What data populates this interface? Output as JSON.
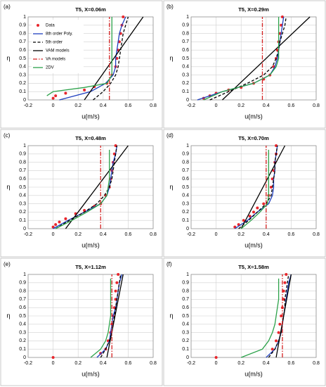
{
  "chart_data": [
    {
      "type": "line",
      "label": "(a)",
      "title": "T5, X=0.06m",
      "x_label": "u(m/s)",
      "y_label": "η",
      "xlim": [
        -0.2,
        0.8
      ],
      "ylim": [
        0,
        1
      ],
      "xticks": [
        -0.2,
        0,
        0.2,
        0.4,
        0.6,
        0.8
      ],
      "yticks": [
        0,
        0.1,
        0.2,
        0.3,
        0.4,
        0.5,
        0.6,
        0.7,
        0.8,
        0.9,
        1
      ],
      "grid": true,
      "legend": "upper left",
      "series": [
        {
          "name": "Data",
          "color": "#e8262c",
          "style": "marker",
          "x": [
            0.0,
            0.02,
            0.1,
            0.25,
            0.33,
            0.43,
            0.47,
            0.5,
            0.51,
            0.52,
            0.53,
            0.54,
            0.55,
            0.56
          ],
          "y": [
            0.02,
            0.05,
            0.08,
            0.12,
            0.16,
            0.2,
            0.3,
            0.4,
            0.5,
            0.6,
            0.7,
            0.8,
            0.9,
            1
          ]
        },
        {
          "name": "8th order Poly.",
          "color": "#1f3fbf",
          "style": "solid",
          "x": [
            0.05,
            0.3,
            0.42,
            0.48,
            0.5,
            0.5,
            0.51,
            0.52,
            0.53,
            0.55,
            0.58
          ],
          "y": [
            0,
            0.1,
            0.2,
            0.3,
            0.4,
            0.5,
            0.6,
            0.7,
            0.8,
            0.9,
            1
          ]
        },
        {
          "name": "5th order",
          "color": "#000000",
          "style": "dashed",
          "x": [
            0.32,
            0.4,
            0.46,
            0.5,
            0.52,
            0.53,
            0.54,
            0.55,
            0.56,
            0.58,
            0.6
          ],
          "y": [
            0,
            0.1,
            0.2,
            0.3,
            0.4,
            0.5,
            0.6,
            0.7,
            0.8,
            0.9,
            1
          ]
        },
        {
          "name": "VAM models",
          "color": "#000000",
          "style": "solid",
          "x": [
            0.25,
            0.72
          ],
          "y": [
            0,
            1
          ]
        },
        {
          "name": "VA models",
          "color": "#d42020",
          "style": "dashdot",
          "x": [
            0.45,
            0.45
          ],
          "y": [
            0,
            1
          ]
        },
        {
          "name": "2DV",
          "color": "#2ca24a",
          "style": "solid",
          "x": [
            -0.05,
            0.0,
            0.25,
            0.43,
            0.47,
            0.47,
            0.47
          ],
          "y": [
            0.05,
            0.1,
            0.15,
            0.2,
            0.3,
            0.6,
            1
          ]
        }
      ]
    },
    {
      "type": "line",
      "label": "(b)",
      "title": "T5, X=0.29m",
      "x_label": "u(m/s)",
      "y_label": "η",
      "xlim": [
        -0.2,
        0.8
      ],
      "ylim": [
        0,
        1
      ],
      "xticks": [
        -0.2,
        0,
        0.2,
        0.4,
        0.6,
        0.8
      ],
      "yticks": [
        0,
        0.1,
        0.2,
        0.3,
        0.4,
        0.5,
        0.6,
        0.7,
        0.8,
        0.9,
        1
      ],
      "grid": true,
      "series": [
        {
          "color": "#e8262c",
          "style": "marker",
          "x": [
            -0.1,
            -0.05,
            0,
            0.1,
            0.2,
            0.3,
            0.38,
            0.43,
            0.46,
            0.48,
            0.49,
            0.5,
            0.51,
            0.52,
            0.53
          ],
          "y": [
            0.02,
            0.05,
            0.08,
            0.12,
            0.15,
            0.2,
            0.25,
            0.3,
            0.4,
            0.5,
            0.6,
            0.7,
            0.8,
            0.9,
            1
          ]
        },
        {
          "color": "#1f3fbf",
          "style": "solid",
          "x": [
            -0.15,
            0.05,
            0.3,
            0.43,
            0.47,
            0.49,
            0.5,
            0.51,
            0.52,
            0.53,
            0.54
          ],
          "y": [
            0,
            0.1,
            0.2,
            0.3,
            0.4,
            0.5,
            0.6,
            0.7,
            0.8,
            0.9,
            1
          ]
        },
        {
          "color": "#000000",
          "style": "dashed",
          "x": [
            -0.05,
            0.1,
            0.25,
            0.38,
            0.45,
            0.48,
            0.5,
            0.51,
            0.53,
            0.55,
            0.56
          ],
          "y": [
            0,
            0.1,
            0.2,
            0.3,
            0.4,
            0.5,
            0.6,
            0.7,
            0.8,
            0.9,
            1
          ]
        },
        {
          "color": "#000000",
          "style": "solid",
          "x": [
            0.05,
            0.75
          ],
          "y": [
            0,
            1
          ]
        },
        {
          "color": "#d42020",
          "style": "dashdot",
          "x": [
            0.37,
            0.37
          ],
          "y": [
            0,
            1
          ]
        },
        {
          "color": "#2ca24a",
          "style": "solid",
          "x": [
            -0.1,
            0.05,
            0.3,
            0.43,
            0.48,
            0.5,
            0.5,
            0.5
          ],
          "y": [
            0,
            0.1,
            0.2,
            0.3,
            0.4,
            0.5,
            0.7,
            1
          ]
        }
      ]
    },
    {
      "type": "line",
      "label": "(c)",
      "title": "T5, X=0.48m",
      "x_label": "u(m/s)",
      "y_label": "η",
      "xlim": [
        -0.2,
        0.8
      ],
      "ylim": [
        0,
        1
      ],
      "xticks": [
        -0.2,
        0,
        0.2,
        0.4,
        0.6,
        0.8
      ],
      "yticks": [
        0,
        0.1,
        0.2,
        0.3,
        0.4,
        0.5,
        0.6,
        0.7,
        0.8,
        0.9,
        1
      ],
      "grid": true,
      "series": [
        {
          "color": "#e8262c",
          "style": "marker",
          "x": [
            0,
            0.02,
            0.05,
            0.1,
            0.18,
            0.25,
            0.33,
            0.38,
            0.42,
            0.45,
            0.46,
            0.47,
            0.48,
            0.49,
            0.5
          ],
          "y": [
            0.02,
            0.05,
            0.08,
            0.12,
            0.18,
            0.22,
            0.27,
            0.3,
            0.4,
            0.5,
            0.6,
            0.7,
            0.8,
            0.9,
            1
          ]
        },
        {
          "color": "#1f3fbf",
          "style": "solid",
          "x": [
            0,
            0.12,
            0.25,
            0.38,
            0.43,
            0.45,
            0.46,
            0.47,
            0.48,
            0.5,
            0.51
          ],
          "y": [
            0,
            0.1,
            0.2,
            0.3,
            0.4,
            0.5,
            0.6,
            0.7,
            0.8,
            0.9,
            1
          ]
        },
        {
          "color": "#000000",
          "style": "dashed",
          "x": [
            0.02,
            0.13,
            0.25,
            0.35,
            0.41,
            0.45,
            0.47,
            0.48,
            0.49,
            0.5,
            0.51
          ],
          "y": [
            0,
            0.1,
            0.2,
            0.3,
            0.4,
            0.5,
            0.6,
            0.7,
            0.8,
            0.9,
            1
          ]
        },
        {
          "color": "#000000",
          "style": "solid",
          "x": [
            0.1,
            0.6
          ],
          "y": [
            0,
            1
          ]
        },
        {
          "color": "#d42020",
          "style": "dashdot",
          "x": [
            0.38,
            0.38
          ],
          "y": [
            0,
            1
          ]
        },
        {
          "color": "#2ca24a",
          "style": "solid",
          "x": [
            0.02,
            0.15,
            0.27,
            0.38,
            0.43,
            0.44,
            0.45,
            0.45
          ],
          "y": [
            0,
            0.1,
            0.2,
            0.3,
            0.4,
            0.5,
            0.6,
            0.95
          ]
        }
      ]
    },
    {
      "type": "line",
      "label": "(d)",
      "title": "T5, X=0.70m",
      "x_label": "u(m/s)",
      "y_label": "η",
      "xlim": [
        -0.2,
        0.8
      ],
      "ylim": [
        0,
        1
      ],
      "xticks": [
        -0.2,
        0,
        0.2,
        0.4,
        0.6,
        0.8
      ],
      "yticks": [
        0,
        0.1,
        0.2,
        0.3,
        0.4,
        0.5,
        0.6,
        0.7,
        0.8,
        0.9,
        1
      ],
      "grid": true,
      "series": [
        {
          "color": "#e8262c",
          "style": "marker",
          "x": [
            0.15,
            0.18,
            0.22,
            0.27,
            0.3,
            0.33,
            0.38,
            0.42,
            0.44,
            0.45,
            0.46,
            0.47,
            0.48,
            0.48
          ],
          "y": [
            0.02,
            0.05,
            0.1,
            0.15,
            0.2,
            0.25,
            0.3,
            0.4,
            0.5,
            0.6,
            0.7,
            0.8,
            0.9,
            1
          ]
        },
        {
          "color": "#1f3fbf",
          "style": "solid",
          "x": [
            0.15,
            0.25,
            0.33,
            0.42,
            0.45,
            0.46,
            0.46,
            0.47,
            0.47,
            0.48,
            0.49
          ],
          "y": [
            0,
            0.1,
            0.2,
            0.3,
            0.4,
            0.5,
            0.6,
            0.7,
            0.8,
            0.9,
            1
          ]
        },
        {
          "color": "#000000",
          "style": "dashed",
          "x": [
            0.18,
            0.26,
            0.33,
            0.4,
            0.44,
            0.45,
            0.46,
            0.47,
            0.47,
            0.48,
            0.49
          ],
          "y": [
            0,
            0.1,
            0.2,
            0.3,
            0.4,
            0.5,
            0.6,
            0.7,
            0.8,
            0.9,
            1
          ]
        },
        {
          "color": "#000000",
          "style": "solid",
          "x": [
            0.2,
            0.55
          ],
          "y": [
            0,
            1
          ]
        },
        {
          "color": "#d42020",
          "style": "dashdot",
          "x": [
            0.4,
            0.4
          ],
          "y": [
            0,
            1
          ]
        },
        {
          "color": "#2ca24a",
          "style": "solid",
          "x": [
            0.2,
            0.28,
            0.35,
            0.41,
            0.42,
            0.42,
            0.42
          ],
          "y": [
            0,
            0.1,
            0.2,
            0.3,
            0.4,
            0.6,
            0.95
          ]
        }
      ]
    },
    {
      "type": "line",
      "label": "(e)",
      "title": "T5, X=1.12m",
      "x_label": "u(m/s)",
      "y_label": "η",
      "xlim": [
        -0.2,
        0.8
      ],
      "ylim": [
        0,
        1
      ],
      "xticks": [
        -0.2,
        0,
        0.2,
        0.4,
        0.6,
        0.8
      ],
      "yticks": [
        0,
        0.1,
        0.2,
        0.3,
        0.4,
        0.5,
        0.6,
        0.7,
        0.8,
        0.9,
        1
      ],
      "grid": true,
      "series": [
        {
          "color": "#e8262c",
          "style": "marker",
          "x": [
            0,
            0.38,
            0.42,
            0.44,
            0.46,
            0.47,
            0.48,
            0.49,
            0.5,
            0.5,
            0.51,
            0.52
          ],
          "y": [
            0,
            0.05,
            0.1,
            0.2,
            0.3,
            0.4,
            0.5,
            0.6,
            0.7,
            0.8,
            0.9,
            1
          ]
        },
        {
          "color": "#1f3fbf",
          "style": "solid",
          "x": [
            0.35,
            0.42,
            0.45,
            0.46,
            0.47,
            0.48,
            0.5,
            0.51,
            0.52,
            0.53,
            0.55
          ],
          "y": [
            0,
            0.1,
            0.2,
            0.3,
            0.4,
            0.5,
            0.6,
            0.7,
            0.8,
            0.9,
            1
          ]
        },
        {
          "color": "#000000",
          "style": "dashed",
          "x": [
            0.38,
            0.42,
            0.45,
            0.47,
            0.48,
            0.49,
            0.5,
            0.51,
            0.52,
            0.53,
            0.54
          ],
          "y": [
            0,
            0.1,
            0.2,
            0.3,
            0.4,
            0.5,
            0.6,
            0.7,
            0.8,
            0.9,
            1
          ]
        },
        {
          "color": "#000000",
          "style": "solid",
          "x": [
            0.43,
            0.56
          ],
          "y": [
            0,
            1
          ]
        },
        {
          "color": "#d42020",
          "style": "dashdot",
          "x": [
            0.47,
            0.47
          ],
          "y": [
            0,
            1
          ]
        },
        {
          "color": "#2ca24a",
          "style": "solid",
          "x": [
            0.3,
            0.38,
            0.42,
            0.44,
            0.45,
            0.46,
            0.46
          ],
          "y": [
            0,
            0.1,
            0.2,
            0.3,
            0.4,
            0.5,
            0.95
          ]
        }
      ]
    },
    {
      "type": "line",
      "label": "(f)",
      "title": "T5, X=1.58m",
      "x_label": "u(m/s)",
      "y_label": "η",
      "xlim": [
        -0.2,
        0.8
      ],
      "ylim": [
        0,
        1
      ],
      "xticks": [
        -0.2,
        0,
        0.2,
        0.4,
        0.6,
        0.8
      ],
      "yticks": [
        0,
        0.1,
        0.2,
        0.3,
        0.4,
        0.5,
        0.6,
        0.7,
        0.8,
        0.9,
        1
      ],
      "grid": true,
      "series": [
        {
          "color": "#e8262c",
          "style": "marker",
          "x": [
            0,
            0.45,
            0.48,
            0.5,
            0.51,
            0.52,
            0.53,
            0.54,
            0.54,
            0.55,
            0.56
          ],
          "y": [
            0,
            0.1,
            0.2,
            0.3,
            0.4,
            0.5,
            0.6,
            0.7,
            0.8,
            0.9,
            1
          ]
        },
        {
          "color": "#1f3fbf",
          "style": "solid",
          "x": [
            0.4,
            0.47,
            0.5,
            0.52,
            0.53,
            0.54,
            0.55,
            0.56,
            0.57,
            0.58,
            0.6
          ],
          "y": [
            0,
            0.1,
            0.2,
            0.3,
            0.4,
            0.5,
            0.6,
            0.7,
            0.8,
            0.9,
            1
          ]
        },
        {
          "color": "#000000",
          "style": "dashed",
          "x": [
            0.42,
            0.47,
            0.5,
            0.52,
            0.53,
            0.54,
            0.55,
            0.55,
            0.56,
            0.57,
            0.58
          ],
          "y": [
            0,
            0.1,
            0.2,
            0.3,
            0.4,
            0.5,
            0.6,
            0.7,
            0.8,
            0.9,
            1
          ]
        },
        {
          "color": "#000000",
          "style": "solid",
          "x": [
            0.48,
            0.6
          ],
          "y": [
            0,
            1
          ]
        },
        {
          "color": "#d42020",
          "style": "dashdot",
          "x": [
            0.53,
            0.53
          ],
          "y": [
            0,
            1
          ]
        },
        {
          "color": "#2ca24a",
          "style": "solid",
          "x": [
            0.2,
            0.37,
            0.42,
            0.45,
            0.47,
            0.48,
            0.49,
            0.5,
            0.5
          ],
          "y": [
            0,
            0.1,
            0.2,
            0.3,
            0.4,
            0.5,
            0.6,
            0.7,
            0.95
          ]
        }
      ]
    }
  ]
}
